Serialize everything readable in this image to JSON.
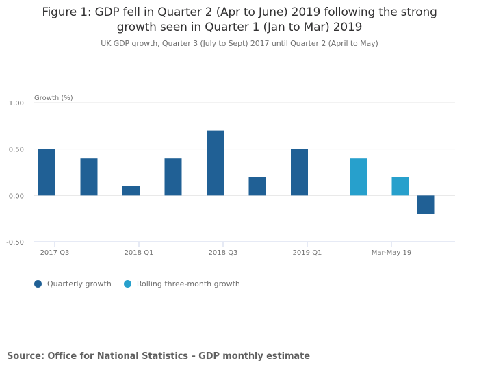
{
  "title_line1": "Figure 1: GDP fell in Quarter 2 (Apr to June) 2019 following the strong",
  "title_line2": "growth seen in Quarter 1 (Jan to Mar) 2019",
  "subtitle": "UK GDP growth, Quarter 3 (July to Sept) 2017 until Quarter 2 (April to May)",
  "source": "Source: Office for National Statistics – GDP monthly estimate",
  "chart_data": {
    "type": "bar",
    "title": "Figure 1: GDP fell in Quarter 2 (Apr to June) 2019 following the strong growth seen in Quarter 1 (Jan to Mar) 2019",
    "subtitle": "UK GDP growth, Quarter 3 (July to Sept) 2017 until Quarter 2 (April to May)",
    "xlabel": "",
    "ylabel": "Growth (%)",
    "ylim": [
      -0.5,
      1.0
    ],
    "yticks": [
      1.0,
      0.5,
      0.0,
      -0.5
    ],
    "ytick_labels": [
      "1.00",
      "0.50",
      "0.00",
      "-0.50"
    ],
    "grid": true,
    "categories": [
      "2017 Q3",
      "",
      "2018 Q1",
      "",
      "2018 Q3",
      "",
      "2019 Q1",
      "",
      "Mar-May 19",
      ""
    ],
    "series": [
      {
        "name": "Quarterly growth",
        "color": "#206095",
        "values": [
          0.5,
          0.4,
          0.1,
          0.4,
          0.7,
          0.2,
          0.5,
          null,
          null,
          -0.2
        ]
      },
      {
        "name": "Rolling three-month growth",
        "color": "#27a0cc",
        "values": [
          null,
          null,
          null,
          null,
          null,
          null,
          null,
          0.4,
          0.2,
          null
        ]
      }
    ],
    "legend_position": "bottom-left"
  }
}
